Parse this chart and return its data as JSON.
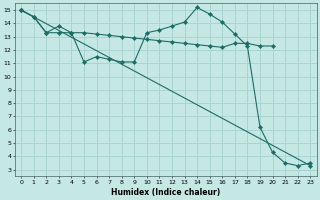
{
  "xlabel": "Humidex (Indice chaleur)",
  "bg_color": "#c5e8e5",
  "grid_color": "#aad4d0",
  "line_color": "#1e6b65",
  "xlim": [
    -0.5,
    23.5
  ],
  "ylim": [
    2.5,
    15.5
  ],
  "xticks": [
    0,
    1,
    2,
    3,
    4,
    5,
    6,
    7,
    8,
    9,
    10,
    11,
    12,
    13,
    14,
    15,
    16,
    17,
    18,
    19,
    20,
    21,
    22,
    23
  ],
  "yticks": [
    3,
    4,
    5,
    6,
    7,
    8,
    9,
    10,
    11,
    12,
    13,
    14,
    15
  ],
  "line1_x": [
    0,
    1,
    2,
    3,
    4,
    5,
    6,
    7,
    8,
    9,
    10,
    11,
    12,
    13,
    14,
    15,
    16,
    17,
    18,
    19,
    20,
    21,
    22,
    23
  ],
  "line1_y": [
    15,
    14.5,
    13.3,
    13.8,
    13.3,
    11.1,
    11.5,
    11.3,
    11.1,
    11.1,
    13.3,
    13.5,
    13.8,
    14.1,
    15.2,
    14.7,
    14.1,
    13.2,
    12.3,
    6.2,
    4.3,
    3.5,
    3.3,
    3.5
  ],
  "line2_x": [
    0,
    1,
    2,
    3,
    4,
    5,
    6,
    7,
    8,
    9,
    10,
    11,
    12,
    13,
    14,
    15,
    16,
    17,
    18,
    19,
    20
  ],
  "line2_y": [
    15,
    14.5,
    13.3,
    13.3,
    13.3,
    13.3,
    13.2,
    13.1,
    13.0,
    12.9,
    12.8,
    12.7,
    12.6,
    12.5,
    12.4,
    12.3,
    12.2,
    12.5,
    12.5,
    12.3,
    12.3
  ],
  "line3_x": [
    0,
    23
  ],
  "line3_y": [
    15,
    3.3
  ]
}
